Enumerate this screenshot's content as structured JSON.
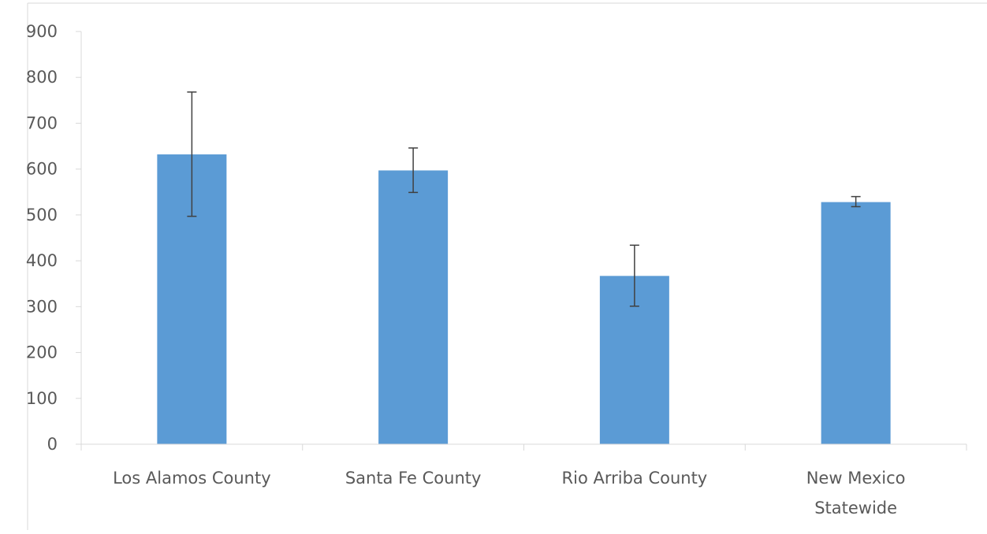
{
  "chart_data": {
    "type": "bar",
    "title": "",
    "xlabel": "",
    "ylabel": "",
    "categories": [
      [
        "Los Alamos County"
      ],
      [
        "Santa Fe County"
      ],
      [
        "Rio Arriba County"
      ],
      [
        "New Mexico",
        "Statewide"
      ]
    ],
    "values": [
      632,
      597,
      367,
      528
    ],
    "error_low": [
      497,
      549,
      301,
      518
    ],
    "error_high": [
      768,
      646,
      434,
      540
    ],
    "ylim": [
      0,
      900
    ],
    "yticks": [
      0,
      100,
      200,
      300,
      400,
      500,
      600,
      700,
      800,
      900
    ],
    "grid": false,
    "colors": {
      "bar": "#5b9bd5",
      "error_bar": "#404040",
      "axis": "#d9d9d9",
      "text": "#595959"
    }
  }
}
